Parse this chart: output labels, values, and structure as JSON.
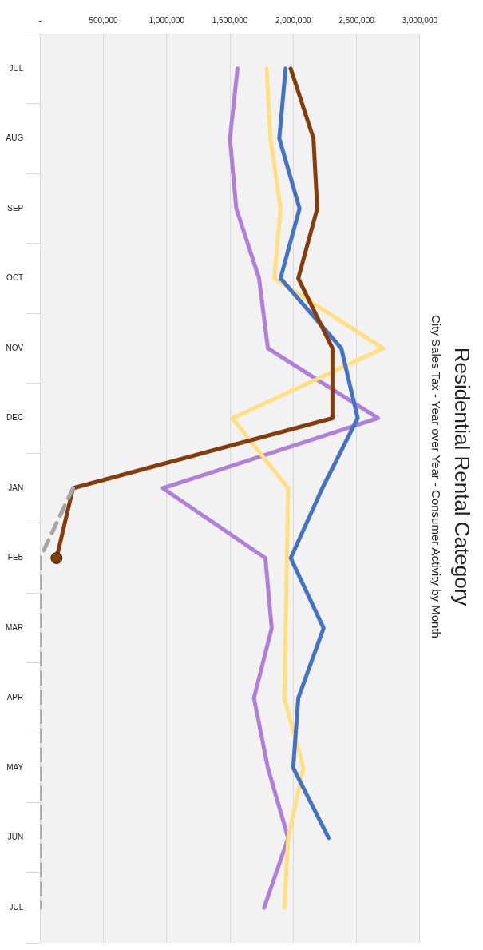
{
  "chart_data": {
    "type": "line",
    "title": "Residential Rental Category",
    "subtitle": "City Sales Tax - Year over Year - Consumer Activity by Month",
    "categories": [
      "JUL",
      "AUG",
      "SEP",
      "OCT",
      "NOV",
      "DEC",
      "JAN",
      "FEB",
      "MAR",
      "APR",
      "MAY",
      "JUN",
      "JUL"
    ],
    "series": [
      {
        "color": "#b07fd9",
        "values": [
          1560000,
          1500000,
          1550000,
          1730000,
          1800000,
          2670000,
          970000,
          1780000,
          1830000,
          1690000,
          1800000,
          1960000,
          1770000
        ]
      },
      {
        "color": "#ffdf80",
        "values": [
          1790000,
          1820000,
          1900000,
          1850000,
          2710000,
          1520000,
          1960000,
          1950000,
          1940000,
          1930000,
          2080000,
          1960000,
          1930000
        ]
      },
      {
        "color": "#4472c4",
        "values": [
          1940000,
          1890000,
          2050000,
          1900000,
          2380000,
          2510000,
          2230000,
          1980000,
          2240000,
          2040000,
          2000000,
          2280000,
          null
        ]
      },
      {
        "color": "#843c0c",
        "values": [
          1980000,
          2160000,
          2190000,
          2040000,
          2310000,
          2310000,
          260000,
          130000,
          null,
          null,
          null,
          null,
          null
        ]
      },
      {
        "color": "#a6a6a6",
        "line_style": "dashed",
        "values": [
          null,
          null,
          null,
          null,
          null,
          null,
          260000,
          0,
          0,
          0,
          0,
          0,
          0
        ]
      },
      {
        "type": "scatter",
        "marker": "circle",
        "color": "#843c0c",
        "x": [
          "FEB"
        ],
        "values": [
          130000
        ]
      }
    ],
    "orientation": "horizontal",
    "xlim": [
      0,
      3000000
    ],
    "xticks": [
      {
        "value": 0,
        "label": "-"
      },
      {
        "value": 500000,
        "label": "500,000"
      },
      {
        "value": 1000000,
        "label": "1,000,000"
      },
      {
        "value": 1500000,
        "label": "1,500,000"
      },
      {
        "value": 2000000,
        "label": "2,000,000"
      },
      {
        "value": 2500000,
        "label": "2,500,000"
      },
      {
        "value": 3000000,
        "label": "3,000,000"
      }
    ],
    "grid": "x",
    "legend": false,
    "marker": "none",
    "line_style": "solid"
  }
}
